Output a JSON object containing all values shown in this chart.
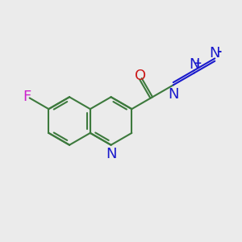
{
  "bg_color": "#ebebeb",
  "bond_color": "#3d7a3d",
  "bond_width": 1.5,
  "atom_colors": {
    "F": "#cc22cc",
    "N": "#1a1acc",
    "O": "#cc1a1a",
    "C": "#3d7a3d"
  },
  "font_size_atom": 13,
  "xlim": [
    0.0,
    1.0
  ],
  "ylim": [
    0.1,
    0.9
  ]
}
